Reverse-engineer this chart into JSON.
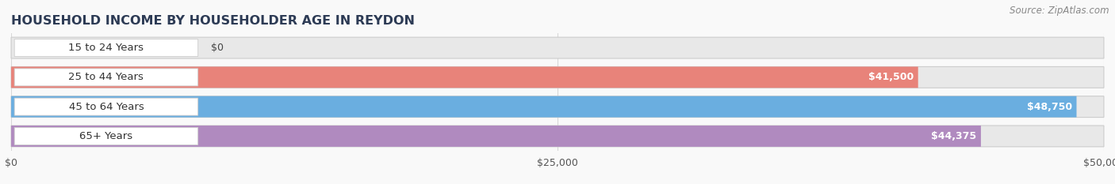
{
  "title": "HOUSEHOLD INCOME BY HOUSEHOLDER AGE IN REYDON",
  "source": "Source: ZipAtlas.com",
  "categories": [
    "15 to 24 Years",
    "25 to 44 Years",
    "45 to 64 Years",
    "65+ Years"
  ],
  "values": [
    0,
    41500,
    48750,
    44375
  ],
  "bar_colors": [
    "#f5cfaa",
    "#e8837a",
    "#6aaee0",
    "#b08abf"
  ],
  "bar_bg_color": "#e8e8e8",
  "value_labels": [
    "$0",
    "$41,500",
    "$48,750",
    "$44,375"
  ],
  "x_ticks": [
    0,
    25000,
    50000
  ],
  "x_tick_labels": [
    "$0",
    "$25,000",
    "$50,000"
  ],
  "xlim": [
    0,
    50000
  ],
  "title_fontsize": 11.5,
  "source_fontsize": 8.5,
  "label_fontsize": 9.5,
  "value_fontsize": 9,
  "background_color": "#f9f9f9",
  "grid_color": "#d8d8d8",
  "pill_bg": "white",
  "pill_border": "#cccccc"
}
